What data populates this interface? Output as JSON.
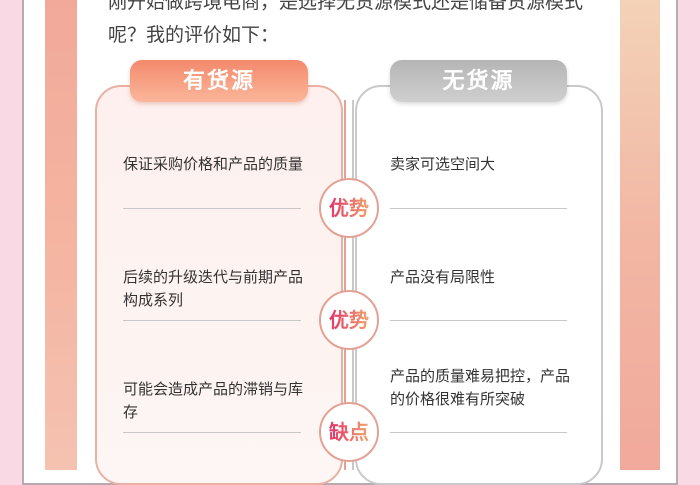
{
  "intro": "刚开始做跨境电商，是选择无货源模式还是储备货源模式呢？我的评价如下：",
  "left": {
    "title": "有货源",
    "items": [
      "保证采购价格和产品的质量",
      "后续的升级迭代与前期产品构成系列",
      "可能会造成产品的滞销与库存"
    ]
  },
  "right": {
    "title": "无货源",
    "items": [
      "卖家可选空间大",
      "产品没有局限性",
      "产品的质量难易把控，产品的价格很难有所突破"
    ]
  },
  "badges": [
    "优势",
    "优势",
    "缺点"
  ],
  "colors": {
    "accent": "#f3896c",
    "gray": "#b5b5b5",
    "background": "#f8d9e4"
  }
}
